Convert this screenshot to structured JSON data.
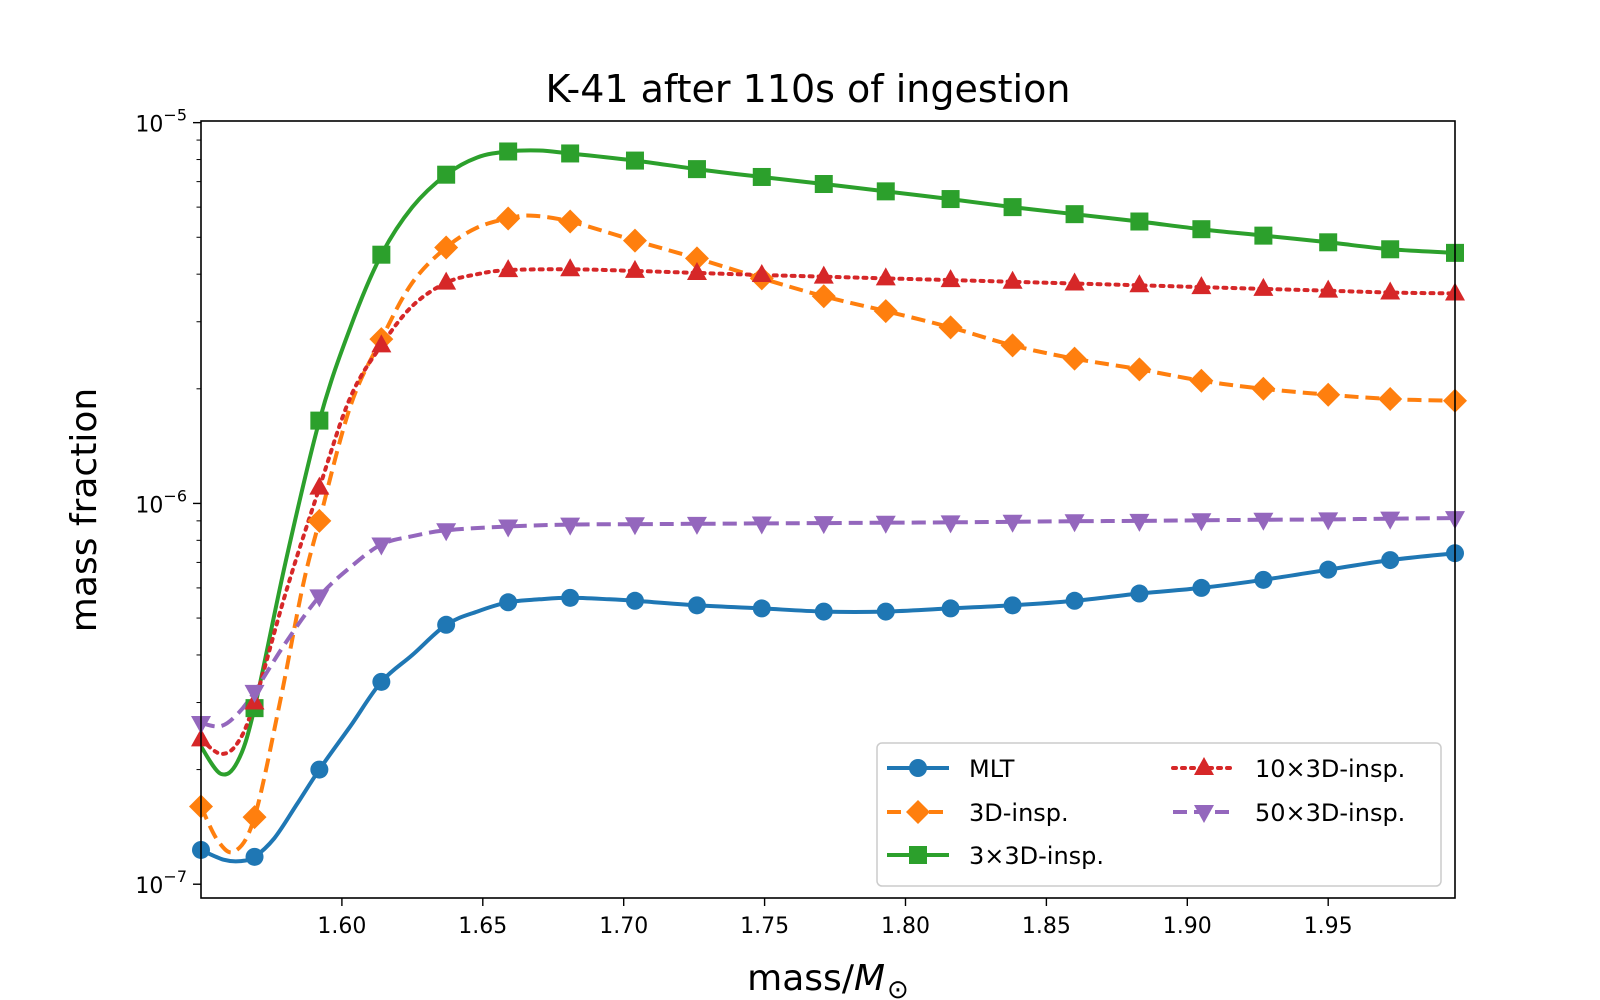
{
  "chart_data": {
    "type": "line",
    "title": "K-41 after 110s of ingestion",
    "xlabel": "mass/",
    "xlabel_symbol": "M",
    "xlabel_sub": "⊙",
    "ylabel": "mass fraction",
    "xlim": [
      1.55,
      1.995
    ],
    "ylim": [
      9.2e-08,
      1.01e-05
    ],
    "yscale": "log",
    "grid": false,
    "legend_position": "lower-right",
    "x_ticks": [
      1.6,
      1.65,
      1.7,
      1.75,
      1.8,
      1.85,
      1.9,
      1.95
    ],
    "x_tick_labels": [
      "1.60",
      "1.65",
      "1.70",
      "1.75",
      "1.80",
      "1.85",
      "1.90",
      "1.95"
    ],
    "y_ticks": [
      1e-07,
      1e-06,
      1e-05
    ],
    "y_tick_labels": [
      {
        "base": "10",
        "exp": "−7"
      },
      {
        "base": "10",
        "exp": "−6"
      },
      {
        "base": "10",
        "exp": "−5"
      }
    ],
    "series": [
      {
        "name": "MLT",
        "color": "#1f77b4",
        "dash": "solid",
        "marker": "circle",
        "x": [
          1.55,
          1.558,
          1.564,
          1.569,
          1.576,
          1.584,
          1.592,
          1.603,
          1.614,
          1.625,
          1.637,
          1.648,
          1.659,
          1.67,
          1.681,
          1.695,
          1.704,
          1.726,
          1.749,
          1.771,
          1.793,
          1.816,
          1.838,
          1.86,
          1.883,
          1.905,
          1.927,
          1.95,
          1.972,
          1.995
        ],
        "y": [
          1.23e-07,
          1.16e-07,
          1.15e-07,
          1.18e-07,
          1.32e-07,
          1.62e-07,
          2e-07,
          2.6e-07,
          3.4e-07,
          4e-07,
          4.8e-07,
          5.2e-07,
          5.5e-07,
          5.6e-07,
          5.65e-07,
          5.6e-07,
          5.55e-07,
          5.4e-07,
          5.3e-07,
          5.2e-07,
          5.2e-07,
          5.3e-07,
          5.4e-07,
          5.55e-07,
          5.8e-07,
          6e-07,
          6.3e-07,
          6.7e-07,
          7.1e-07,
          7.4e-07
        ],
        "marker_x": [
          1.55,
          1.569,
          1.592,
          1.614,
          1.637,
          1.659,
          1.681,
          1.704,
          1.726,
          1.749,
          1.771,
          1.793,
          1.816,
          1.838,
          1.86,
          1.883,
          1.905,
          1.927,
          1.95,
          1.972,
          1.995
        ],
        "marker_y": [
          1.23e-07,
          1.18e-07,
          2e-07,
          3.4e-07,
          4.8e-07,
          5.5e-07,
          5.65e-07,
          5.55e-07,
          5.4e-07,
          5.3e-07,
          5.2e-07,
          5.2e-07,
          5.3e-07,
          5.4e-07,
          5.55e-07,
          5.8e-07,
          6e-07,
          6.3e-07,
          6.7e-07,
          7.1e-07,
          7.4e-07
        ]
      },
      {
        "name": "3D-insp.",
        "color": "#ff7f0e",
        "dash": "dashed",
        "marker": "diamond",
        "x": [
          1.55,
          1.556,
          1.562,
          1.569,
          1.578,
          1.586,
          1.592,
          1.603,
          1.614,
          1.625,
          1.637,
          1.648,
          1.659,
          1.667,
          1.681,
          1.704,
          1.726,
          1.749,
          1.771,
          1.793,
          1.816,
          1.838,
          1.86,
          1.883,
          1.905,
          1.927,
          1.95,
          1.972,
          1.995
        ],
        "y": [
          1.6e-07,
          1.3e-07,
          1.22e-07,
          1.5e-07,
          3e-07,
          6e-07,
          9e-07,
          1.8e-06,
          2.7e-06,
          3.8e-06,
          4.7e-06,
          5.3e-06,
          5.6e-06,
          5.7e-06,
          5.5e-06,
          4.9e-06,
          4.4e-06,
          3.9e-06,
          3.5e-06,
          3.2e-06,
          2.9e-06,
          2.6e-06,
          2.4e-06,
          2.25e-06,
          2.1e-06,
          2e-06,
          1.93e-06,
          1.88e-06,
          1.86e-06
        ],
        "marker_x": [
          1.55,
          1.569,
          1.592,
          1.614,
          1.637,
          1.659,
          1.681,
          1.704,
          1.726,
          1.749,
          1.771,
          1.793,
          1.816,
          1.838,
          1.86,
          1.883,
          1.905,
          1.927,
          1.95,
          1.972,
          1.995
        ],
        "marker_y": [
          1.6e-07,
          1.5e-07,
          9e-07,
          2.7e-06,
          4.7e-06,
          5.6e-06,
          5.5e-06,
          4.9e-06,
          4.4e-06,
          3.9e-06,
          3.5e-06,
          3.2e-06,
          2.9e-06,
          2.6e-06,
          2.4e-06,
          2.25e-06,
          2.1e-06,
          2e-06,
          1.93e-06,
          1.88e-06,
          1.86e-06
        ]
      },
      {
        "name": "3×3D-insp.",
        "color": "#2ca02c",
        "dash": "solid",
        "marker": "square",
        "x": [
          1.55,
          1.557,
          1.563,
          1.569,
          1.58,
          1.592,
          1.603,
          1.614,
          1.625,
          1.637,
          1.648,
          1.659,
          1.67,
          1.681,
          1.704,
          1.726,
          1.749,
          1.771,
          1.793,
          1.816,
          1.838,
          1.86,
          1.883,
          1.905,
          1.927,
          1.95,
          1.972,
          1.995
        ],
        "y": [
          2.3e-07,
          1.95e-07,
          2.1e-07,
          2.9e-07,
          7e-07,
          1.65e-06,
          2.9e-06,
          4.5e-06,
          6e-06,
          7.3e-06,
          8.1e-06,
          8.4e-06,
          8.45e-06,
          8.3e-06,
          7.95e-06,
          7.55e-06,
          7.2e-06,
          6.9e-06,
          6.6e-06,
          6.3e-06,
          6e-06,
          5.75e-06,
          5.5e-06,
          5.25e-06,
          5.05e-06,
          4.85e-06,
          4.65e-06,
          4.55e-06
        ],
        "marker_x": [
          1.569,
          1.592,
          1.614,
          1.637,
          1.659,
          1.681,
          1.704,
          1.726,
          1.749,
          1.771,
          1.793,
          1.816,
          1.838,
          1.86,
          1.883,
          1.905,
          1.927,
          1.95,
          1.972,
          1.995
        ],
        "marker_y": [
          2.9e-07,
          1.65e-06,
          4.5e-06,
          7.3e-06,
          8.4e-06,
          8.3e-06,
          7.95e-06,
          7.55e-06,
          7.2e-06,
          6.9e-06,
          6.6e-06,
          6.3e-06,
          6e-06,
          5.75e-06,
          5.5e-06,
          5.25e-06,
          5.05e-06,
          4.85e-06,
          4.65e-06,
          4.55e-06
        ]
      },
      {
        "name": "10×3D-insp.",
        "color": "#d62728",
        "dash": "dotted",
        "marker": "triangle-up",
        "x": [
          1.55,
          1.557,
          1.563,
          1.569,
          1.58,
          1.592,
          1.603,
          1.614,
          1.625,
          1.637,
          1.648,
          1.659,
          1.681,
          1.704,
          1.726,
          1.749,
          1.771,
          1.793,
          1.816,
          1.838,
          1.86,
          1.883,
          1.905,
          1.927,
          1.95,
          1.972,
          1.995
        ],
        "y": [
          2.4e-07,
          2.2e-07,
          2.35e-07,
          3e-07,
          5.8e-07,
          1.1e-06,
          1.9e-06,
          2.6e-06,
          3.3e-06,
          3.8e-06,
          4e-06,
          4.1e-06,
          4.12e-06,
          4.08e-06,
          4.03e-06,
          3.98e-06,
          3.94e-06,
          3.9e-06,
          3.86e-06,
          3.82e-06,
          3.78e-06,
          3.74e-06,
          3.7e-06,
          3.66e-06,
          3.62e-06,
          3.58e-06,
          3.56e-06
        ],
        "marker_x": [
          1.55,
          1.569,
          1.592,
          1.614,
          1.637,
          1.659,
          1.681,
          1.704,
          1.726,
          1.749,
          1.771,
          1.793,
          1.816,
          1.838,
          1.86,
          1.883,
          1.905,
          1.927,
          1.95,
          1.972,
          1.995
        ],
        "marker_y": [
          2.4e-07,
          3e-07,
          1.1e-06,
          2.6e-06,
          3.8e-06,
          4.1e-06,
          4.12e-06,
          4.08e-06,
          4.03e-06,
          3.98e-06,
          3.94e-06,
          3.9e-06,
          3.86e-06,
          3.82e-06,
          3.78e-06,
          3.74e-06,
          3.7e-06,
          3.66e-06,
          3.62e-06,
          3.58e-06,
          3.56e-06
        ]
      },
      {
        "name": "50×3D-insp.",
        "color": "#9467bd",
        "dash": "dashed",
        "marker": "triangle-down",
        "x": [
          1.55,
          1.557,
          1.563,
          1.569,
          1.58,
          1.592,
          1.603,
          1.614,
          1.625,
          1.637,
          1.659,
          1.681,
          1.704,
          1.726,
          1.749,
          1.771,
          1.793,
          1.816,
          1.838,
          1.86,
          1.883,
          1.905,
          1.927,
          1.95,
          1.972,
          1.995
        ],
        "y": [
          2.65e-07,
          2.6e-07,
          2.8e-07,
          3.2e-07,
          4.3e-07,
          5.7e-07,
          6.8e-07,
          7.8e-07,
          8.2e-07,
          8.5e-07,
          8.7e-07,
          8.8e-07,
          8.82e-07,
          8.84e-07,
          8.86e-07,
          8.88e-07,
          8.9e-07,
          8.92e-07,
          8.95e-07,
          8.98e-07,
          9e-07,
          9.03e-07,
          9.06e-07,
          9.08e-07,
          9.12e-07,
          9.15e-07
        ],
        "marker_x": [
          1.55,
          1.569,
          1.592,
          1.614,
          1.637,
          1.659,
          1.681,
          1.704,
          1.726,
          1.749,
          1.771,
          1.793,
          1.816,
          1.838,
          1.86,
          1.883,
          1.905,
          1.927,
          1.95,
          1.972,
          1.995
        ],
        "marker_y": [
          2.65e-07,
          3.2e-07,
          5.7e-07,
          7.8e-07,
          8.5e-07,
          8.7e-07,
          8.8e-07,
          8.82e-07,
          8.84e-07,
          8.86e-07,
          8.88e-07,
          8.9e-07,
          8.92e-07,
          8.95e-07,
          8.98e-07,
          9e-07,
          9.03e-07,
          9.06e-07,
          9.08e-07,
          9.12e-07,
          9.15e-07
        ]
      }
    ],
    "legend_layout": {
      "columns": 2,
      "order": [
        [
          0,
          1,
          2
        ],
        [
          3,
          4
        ]
      ]
    }
  }
}
